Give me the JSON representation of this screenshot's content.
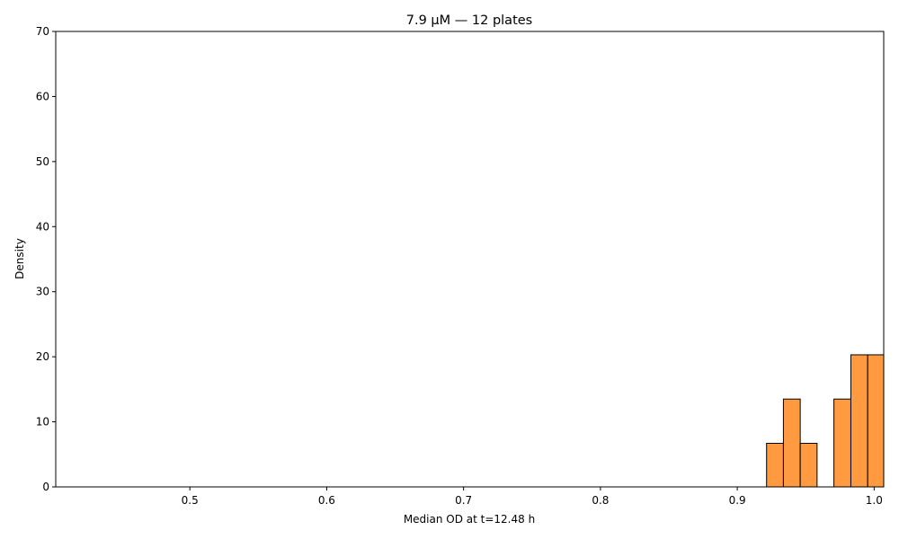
{
  "chart_data": {
    "type": "bar",
    "title": "7.9 µM — 12 plates",
    "xlabel": "Median OD at t=12.48 h",
    "ylabel": "Density",
    "xlim": [
      0.402,
      1.007
    ],
    "ylim": [
      0,
      70
    ],
    "xticks": [
      0.5,
      0.6,
      0.7,
      0.8,
      0.9,
      1.0
    ],
    "xtick_labels": [
      "0.5",
      "0.6",
      "0.7",
      "0.8",
      "0.9",
      "1.0"
    ],
    "yticks": [
      0,
      10,
      20,
      30,
      40,
      50,
      60,
      70
    ],
    "ytick_labels": [
      "0",
      "10",
      "20",
      "30",
      "40",
      "50",
      "60",
      "70"
    ],
    "grid": false,
    "legend": "none",
    "bar_color": "#ff9a40",
    "edge_color": "#000000",
    "bins": [
      {
        "x0": 0.9214,
        "x1": 0.9337,
        "density": 6.7
      },
      {
        "x0": 0.9337,
        "x1": 0.946,
        "density": 13.5
      },
      {
        "x0": 0.946,
        "x1": 0.9583,
        "density": 6.7
      },
      {
        "x0": 0.9583,
        "x1": 0.9706,
        "density": 0
      },
      {
        "x0": 0.9706,
        "x1": 0.983,
        "density": 13.5
      },
      {
        "x0": 0.983,
        "x1": 0.9953,
        "density": 20.3
      },
      {
        "x0": 0.9953,
        "x1": 1.0076,
        "density": 20.3
      }
    ]
  }
}
